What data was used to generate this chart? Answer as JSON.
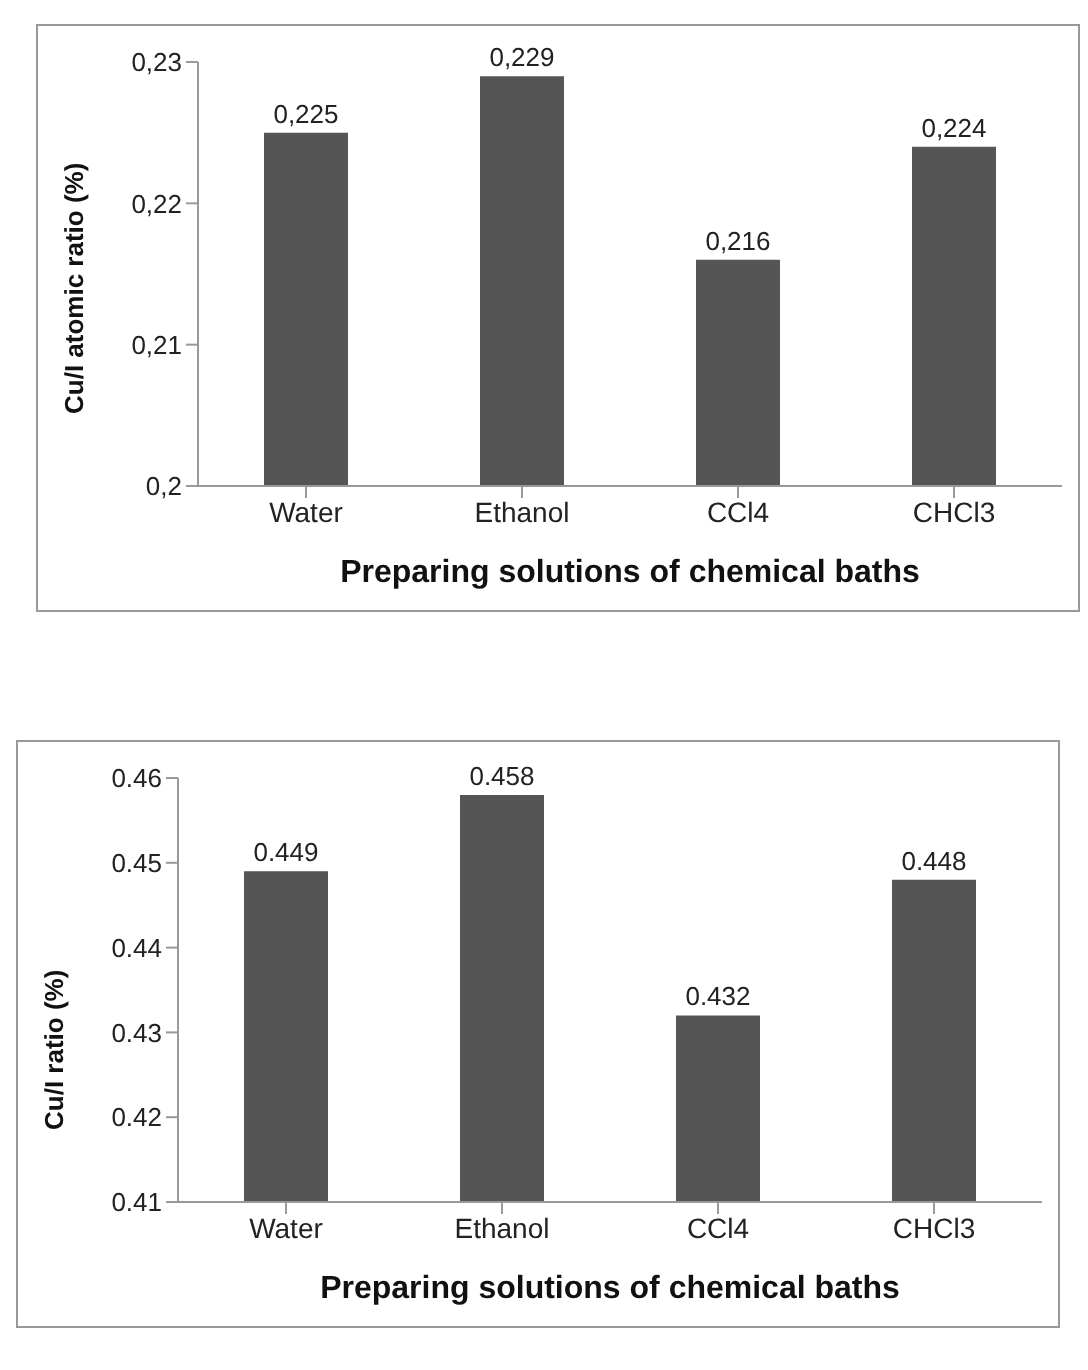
{
  "chart_data": [
    {
      "type": "bar",
      "categories": [
        "Water",
        "Ethanol",
        "CCl4",
        "CHCl3"
      ],
      "values": [
        0.225,
        0.229,
        0.216,
        0.224
      ],
      "color": "#555555",
      "value_labels": [
        "0,225",
        "0,229",
        "0,216",
        "0,224"
      ],
      "xlabel": "Preparing solutions of chemical baths",
      "ylabel": "Cu/I atomic ratio (%)",
      "ylim": [
        0.2,
        0.23
      ],
      "yticks": [
        {
          "value": 0.2,
          "label": "0,2"
        },
        {
          "value": 0.21,
          "label": "0,21"
        },
        {
          "value": 0.22,
          "label": "0,22"
        },
        {
          "value": 0.23,
          "label": "0,23"
        }
      ],
      "grid": false,
      "legend": false
    },
    {
      "type": "bar",
      "categories": [
        "Water",
        "Ethanol",
        "CCl4",
        "CHCl3"
      ],
      "values": [
        0.449,
        0.458,
        0.432,
        0.448
      ],
      "color": "#555555",
      "data_labels": true,
      "xlabel": "Preparing solutions of chemical baths",
      "ylabel": "Cu/I ratio (%)",
      "ylim": [
        0.41,
        0.46
      ],
      "yticks": [
        0.41,
        0.42,
        0.43,
        0.44,
        0.45,
        0.46
      ],
      "grid": false,
      "legend": false
    }
  ]
}
